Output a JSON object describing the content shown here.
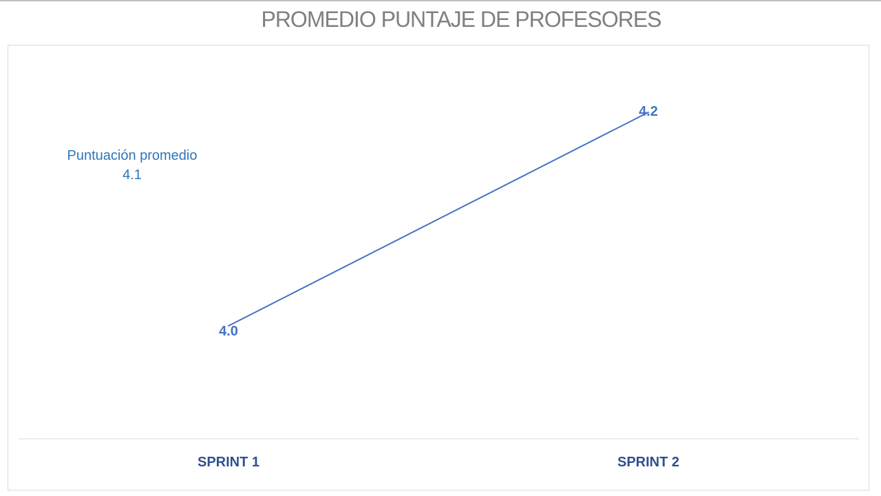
{
  "chart_data": {
    "type": "line",
    "title": "PROMEDIO PUNTAJE DE PROFESORES",
    "categories": [
      "SPRINT 1",
      "SPRINT 2"
    ],
    "series": [
      {
        "values": [
          4.0,
          4.2
        ],
        "data_labels": [
          "4.0",
          "4.2"
        ],
        "color": "#4472c4"
      }
    ],
    "ylim": [
      3.75,
      4.25
    ],
    "grid": false,
    "annotation": {
      "label": "Puntuación promedio",
      "value": "4.1",
      "color": "#2e75b6"
    },
    "axis_label_color": "#2f4f8f",
    "axis_line_color": "#d9d9d9"
  }
}
